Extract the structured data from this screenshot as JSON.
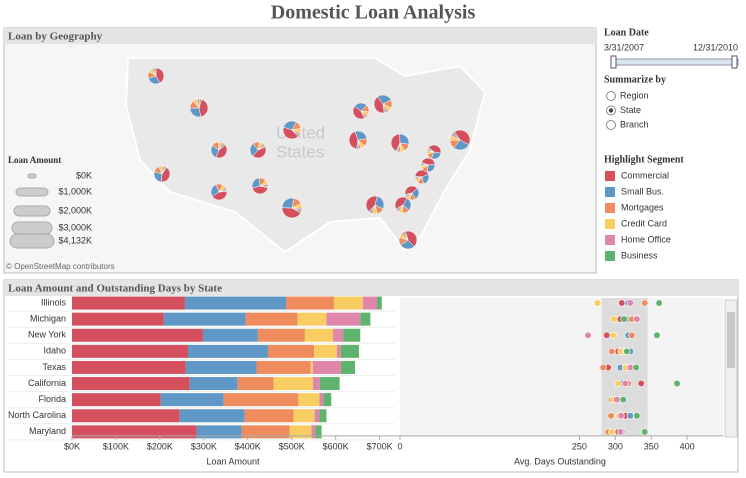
{
  "title": "Domestic Loan Analysis",
  "map": {
    "title": "Loan by Geography",
    "place_labels": [
      "United",
      "States"
    ],
    "size_legend": {
      "title": "Loan Amount",
      "labels": [
        "$0K",
        "$1,000K",
        "$2,000K",
        "$3,000K",
        "$4,132K"
      ]
    },
    "attribution": "© OpenStreetMap contributors"
  },
  "filters": {
    "date": {
      "title": "Loan Date",
      "start": "3/31/2007",
      "end": "12/31/2010"
    },
    "summarize": {
      "title": "Summarize by",
      "options": [
        "Region",
        "State",
        "Branch"
      ],
      "selected": "State"
    }
  },
  "legend": {
    "title": "Highlight Segment"
  },
  "panel_title": "Loan Amount and Outstanding Days by State",
  "chart_data": [
    {
      "type": "bar",
      "orientation": "horizontal",
      "stacked": true,
      "categories": [
        "Illinois",
        "Michigan",
        "New York",
        "Idaho",
        "Texas",
        "California",
        "Florida",
        "North Carolina",
        "Maryland"
      ],
      "series": [
        {
          "name": "Commercial",
          "color": "#d4505e",
          "values": [
            257,
            209,
            298,
            264,
            259,
            268,
            202,
            245,
            284
          ]
        },
        {
          "name": "Small Bus.",
          "color": "#5f97c6",
          "values": [
            230,
            186,
            125,
            182,
            161,
            109,
            143,
            148,
            102
          ]
        },
        {
          "name": "Mortgages",
          "color": "#ef8c5d",
          "values": [
            109,
            118,
            107,
            105,
            123,
            82,
            170,
            111,
            109
          ]
        },
        {
          "name": "Credit Card",
          "color": "#f8cd62",
          "values": [
            66,
            66,
            64,
            52,
            5,
            89,
            48,
            48,
            50
          ]
        },
        {
          "name": "Home Office",
          "color": "#df86aa",
          "values": [
            32,
            77,
            23,
            9,
            64,
            16,
            9,
            11,
            9
          ]
        },
        {
          "name": "Business",
          "color": "#5fb36c",
          "values": [
            11,
            23,
            39,
            41,
            32,
            45,
            18,
            16,
            14
          ]
        }
      ],
      "xlim": [
        0,
        735
      ],
      "xticks": [
        {
          "value": 0,
          "label": "$0K"
        },
        {
          "value": 100,
          "label": "$100K"
        },
        {
          "value": 200,
          "label": "$200K"
        },
        {
          "value": 300,
          "label": "$300K"
        },
        {
          "value": 400,
          "label": "$400K"
        },
        {
          "value": 500,
          "label": "$500K"
        },
        {
          "value": 600,
          "label": "$600K"
        },
        {
          "value": 700,
          "label": "$700K"
        }
      ],
      "x_label": "Loan Amount"
    },
    {
      "type": "dot",
      "categories": [
        "Illinois",
        "Michigan",
        "New York",
        "Idaho",
        "Texas",
        "California",
        "Florida",
        "North Carolina",
        "Maryland"
      ],
      "series": [
        {
          "name": "Commercial",
          "color": "#d4505e",
          "values": [
            309,
            307,
            288,
            304,
            290,
            336,
            295,
            314,
            304
          ]
        },
        {
          "name": "Small Bus.",
          "color": "#5f97c6",
          "values": [
            318,
            315,
            318,
            321,
            307,
            309,
            309,
            321,
            309
          ]
        },
        {
          "name": "Mortgages",
          "color": "#ef8c5d",
          "values": [
            341,
            323,
            323,
            295,
            283,
            318,
            307,
            294,
            290
          ]
        },
        {
          "name": "Credit Card",
          "color": "#f8cd62",
          "values": [
            275,
            298,
            297,
            308,
            314,
            304,
            297,
            305,
            295
          ]
        },
        {
          "name": "Home Office",
          "color": "#df86aa",
          "values": [
            321,
            330,
            262,
            315,
            321,
            314,
            302,
            308,
            307
          ]
        },
        {
          "name": "Business",
          "color": "#5fb36c",
          "values": [
            361,
            312,
            358,
            316,
            329,
            386,
            311,
            330,
            341
          ]
        }
      ],
      "reference_band": [
        281,
        345
      ],
      "xlim": [
        0,
        450
      ],
      "xticks": [
        0,
        250,
        300,
        350,
        400
      ],
      "x_label": "Avg. Days Outstanding"
    }
  ]
}
